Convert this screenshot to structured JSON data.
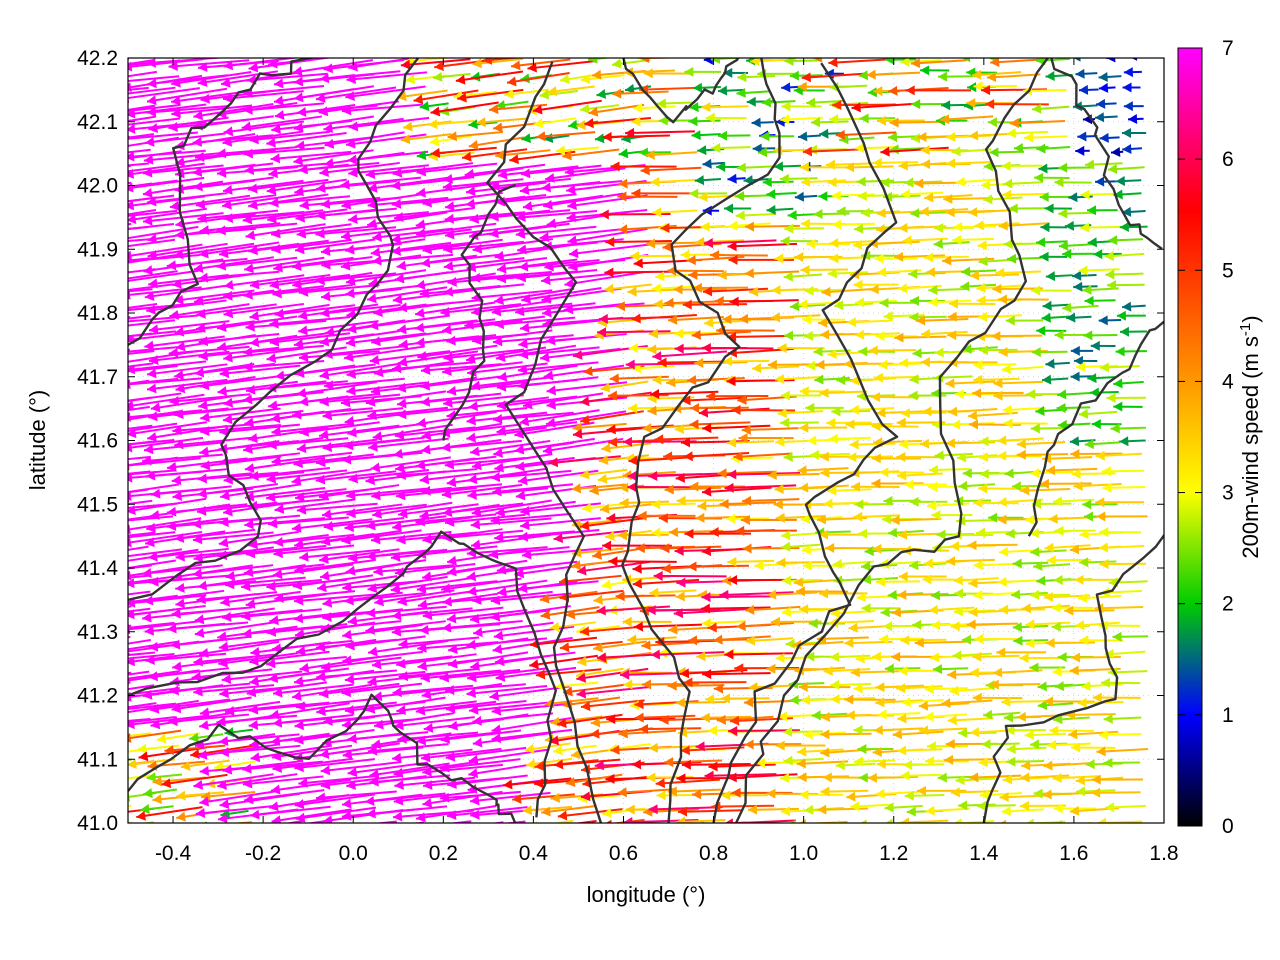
{
  "chart_data": {
    "type": "quiver",
    "xlabel": "longitude (°)",
    "ylabel": "latitude (°)",
    "xlim": [
      -0.5,
      1.8
    ],
    "ylim": [
      41.0,
      42.2
    ],
    "xticks": [
      "-0.4",
      "-0.2",
      "0.0",
      "0.2",
      "0.4",
      "0.6",
      "0.8",
      "1.0",
      "1.2",
      "1.4",
      "1.6",
      "1.8"
    ],
    "xtick_values": [
      -0.4,
      -0.2,
      0.0,
      0.2,
      0.4,
      0.6,
      0.8,
      1.0,
      1.2,
      1.4,
      1.6,
      1.8
    ],
    "yticks": [
      "41.0",
      "41.1",
      "41.2",
      "41.3",
      "41.4",
      "41.5",
      "41.6",
      "41.7",
      "41.8",
      "41.9",
      "42.0",
      "42.1",
      "42.2"
    ],
    "ytick_values": [
      41.0,
      41.1,
      41.2,
      41.3,
      41.4,
      41.5,
      41.6,
      41.7,
      41.8,
      41.9,
      42.0,
      42.1,
      42.2
    ],
    "colorbar": {
      "label": "200m-wind speed (m s",
      "label_sup": "-1",
      "label_end": ")",
      "range": [
        0,
        7
      ],
      "ticks": [
        "0",
        "1",
        "2",
        "3",
        "4",
        "5",
        "6",
        "7"
      ],
      "tick_values": [
        0,
        1,
        2,
        3,
        4,
        5,
        6,
        7
      ],
      "colors": [
        "#000000",
        "#0000ff",
        "#00cc00",
        "#ffff00",
        "#ff8c00",
        "#ff0000",
        "#ff00ff"
      ]
    },
    "grid": true,
    "contour_color": "#333333",
    "wind_regions": [
      {
        "region": "west of 0.5°E, 41.0–42.0°N",
        "speed_ms": 7,
        "direction": "from ESE, pointing W"
      },
      {
        "region": "central 0.5–1.0°E",
        "speed_ms": 5,
        "direction": "from E, pointing W"
      },
      {
        "region": "east of 1.0°E",
        "speed_ms": 3.5,
        "direction": "from E, pointing W"
      },
      {
        "region": "north-east corner",
        "speed_ms": 1,
        "direction": "variable"
      }
    ]
  }
}
